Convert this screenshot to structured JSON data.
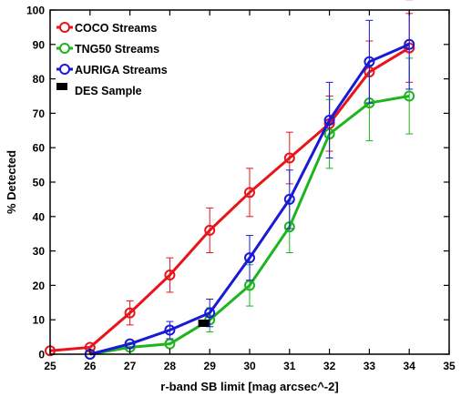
{
  "chart_data": {
    "type": "line",
    "title": "",
    "xlabel": "r-band SB limit [mag arcsec^-2]",
    "ylabel": "% Detected",
    "xlim": [
      25,
      35
    ],
    "ylim": [
      0,
      100
    ],
    "xticks": [
      25,
      26,
      27,
      28,
      29,
      30,
      31,
      32,
      33,
      34,
      35
    ],
    "yticks": [
      0,
      10,
      20,
      30,
      40,
      50,
      60,
      70,
      80,
      90,
      100
    ],
    "grid": false,
    "legend_placement": "top-left",
    "series": [
      {
        "name": "COCO Streams",
        "color": "#e8141a",
        "x": [
          25,
          26,
          27,
          28,
          29,
          30,
          31,
          32,
          33,
          34
        ],
        "y": [
          1,
          2,
          12,
          23,
          36,
          47,
          57,
          67,
          82,
          89
        ],
        "yerr": [
          0,
          0,
          3.5,
          5,
          6.5,
          7,
          7.5,
          8,
          9,
          10
        ]
      },
      {
        "name": "TNG50 Streams",
        "color": "#1db51d",
        "x": [
          26,
          27,
          28,
          29,
          30,
          31,
          32,
          33,
          34
        ],
        "y": [
          0,
          2,
          3,
          10,
          20,
          37,
          64,
          73,
          75
        ],
        "yerr": [
          0,
          0,
          0,
          3.5,
          6,
          7.5,
          10,
          11,
          11
        ]
      },
      {
        "name": "AURIGA Streams",
        "color": "#1a1ad6",
        "x": [
          26,
          27,
          28,
          29,
          30,
          31,
          32,
          33,
          34
        ],
        "y": [
          0,
          3,
          7,
          12,
          28,
          45,
          68,
          85,
          90
        ],
        "yerr": [
          0,
          0,
          2.5,
          4,
          6.5,
          8.5,
          11,
          12,
          13
        ]
      }
    ],
    "markers": [
      {
        "name": "DES Sample",
        "color": "#000000",
        "x": 28.85,
        "y": 9
      }
    ]
  }
}
